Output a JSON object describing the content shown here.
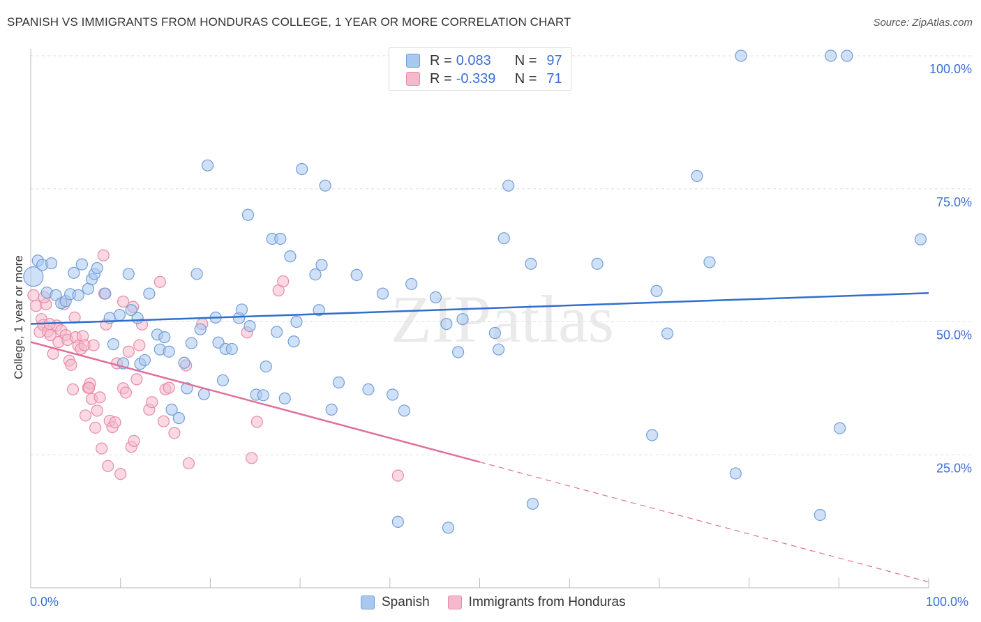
{
  "title": "SPANISH VS IMMIGRANTS FROM HONDURAS COLLEGE, 1 YEAR OR MORE CORRELATION CHART",
  "source": "Source: ZipAtlas.com",
  "watermark": "ZIPatlas",
  "colors": {
    "spanish_fill": "#a9c8f0",
    "spanish_stroke": "#6f9ed8",
    "spanish_line": "#2f6fcc",
    "honduras_fill": "#f6b9cc",
    "honduras_stroke": "#e88aa8",
    "honduras_line": "#e0709a",
    "value_text": "#3b6fd6",
    "grid": "#dddddd"
  },
  "legend": {
    "rows": [
      {
        "r_label": "R =",
        "r_value": "0.083",
        "n_label": "N =",
        "n_value": "97"
      },
      {
        "r_label": "R =",
        "r_value": "-0.339",
        "n_label": "N =",
        "n_value": "71"
      }
    ]
  },
  "bottom_legend": {
    "spanish": "Spanish",
    "honduras": "Immigrants from Honduras"
  },
  "x_axis": {
    "min_label": "0.0%",
    "max_label": "100.0%"
  },
  "chart_data": {
    "type": "scatter",
    "title": "SPANISH VS IMMIGRANTS FROM HONDURAS COLLEGE, 1 YEAR OR MORE CORRELATION CHART",
    "xlabel": "",
    "ylabel": "College, 1 year or more",
    "xlim": [
      0,
      100
    ],
    "ylim": [
      0,
      105
    ],
    "y_ticks": [
      {
        "value": 25,
        "label": "25.0%"
      },
      {
        "value": 50,
        "label": "50.0%"
      },
      {
        "value": 75,
        "label": "75.0%"
      },
      {
        "value": 100,
        "label": "100.0%"
      }
    ],
    "legend_position": "top-center",
    "series": [
      {
        "name": "Spanish",
        "r": 0.083,
        "n": 97,
        "trend": {
          "x": [
            0,
            100
          ],
          "y": [
            49.6,
            55.4
          ],
          "dashed_from": null
        },
        "points": [
          [
            0.3,
            58.5
          ],
          [
            0.8,
            61.5
          ],
          [
            1.3,
            60.7
          ],
          [
            1.8,
            55.5
          ],
          [
            2.3,
            61
          ],
          [
            2.8,
            55
          ],
          [
            3.4,
            53.5
          ],
          [
            3.9,
            53.9
          ],
          [
            4.4,
            55.2
          ],
          [
            4.8,
            59.2
          ],
          [
            5.3,
            55
          ],
          [
            5.7,
            60.8
          ],
          [
            6.4,
            56.2
          ],
          [
            6.8,
            58
          ],
          [
            7.1,
            59
          ],
          [
            7.4,
            60.1
          ],
          [
            8.3,
            55.3
          ],
          [
            8.8,
            50.7
          ],
          [
            9.2,
            45.8
          ],
          [
            9.9,
            51.3
          ],
          [
            10.3,
            42.2
          ],
          [
            10.9,
            59
          ],
          [
            11.2,
            52.2
          ],
          [
            11.9,
            50.7
          ],
          [
            12.2,
            42.1
          ],
          [
            12.7,
            42.8
          ],
          [
            13.2,
            55.3
          ],
          [
            14.1,
            47.6
          ],
          [
            14.4,
            44.8
          ],
          [
            14.9,
            47.1
          ],
          [
            15.4,
            44.4
          ],
          [
            15.7,
            33.5
          ],
          [
            16.5,
            31.9
          ],
          [
            17.1,
            42.3
          ],
          [
            17.4,
            37.5
          ],
          [
            17.9,
            46
          ],
          [
            18.5,
            59
          ],
          [
            18.9,
            48.6
          ],
          [
            19.3,
            36.4
          ],
          [
            19.7,
            79.4
          ],
          [
            20.6,
            50.8
          ],
          [
            20.9,
            46.1
          ],
          [
            21.4,
            39
          ],
          [
            21.7,
            44.9
          ],
          [
            22.4,
            44.9
          ],
          [
            23.2,
            50.7
          ],
          [
            23.5,
            52.3
          ],
          [
            24.2,
            70.1
          ],
          [
            24.4,
            49.2
          ],
          [
            25.1,
            36.3
          ],
          [
            25.9,
            36.2
          ],
          [
            26.2,
            41.6
          ],
          [
            26.9,
            65.6
          ],
          [
            27.4,
            48.1
          ],
          [
            27.8,
            65.6
          ],
          [
            28.3,
            35.6
          ],
          [
            28.9,
            62.3
          ],
          [
            29.3,
            46.3
          ],
          [
            29.6,
            50
          ],
          [
            30.2,
            78.7
          ],
          [
            31.7,
            58.9
          ],
          [
            32.1,
            52.2
          ],
          [
            32.4,
            60.7
          ],
          [
            32.8,
            75.6
          ],
          [
            33.5,
            33.5
          ],
          [
            34.3,
            38.6
          ],
          [
            36.3,
            58.8
          ],
          [
            37.6,
            37.3
          ],
          [
            39.2,
            55.3
          ],
          [
            40.3,
            36.3
          ],
          [
            40.9,
            12.4
          ],
          [
            41.6,
            33.3
          ],
          [
            42.4,
            57.1
          ],
          [
            45.1,
            54.6
          ],
          [
            46.3,
            49.6
          ],
          [
            46.5,
            11.3
          ],
          [
            47.6,
            44.3
          ],
          [
            48.1,
            50.5
          ],
          [
            51.7,
            47.9
          ],
          [
            52.1,
            44.8
          ],
          [
            52.7,
            65.7
          ],
          [
            53.2,
            75.6
          ],
          [
            55.7,
            60.9
          ],
          [
            55.9,
            15.8
          ],
          [
            63.1,
            60.9
          ],
          [
            69.2,
            28.7
          ],
          [
            69.7,
            55.8
          ],
          [
            70.9,
            47.8
          ],
          [
            74.2,
            77.4
          ],
          [
            75.6,
            61.2
          ],
          [
            78.5,
            21.5
          ],
          [
            79.1,
            100
          ],
          [
            87.9,
            13.7
          ],
          [
            89.1,
            100
          ],
          [
            90.1,
            30
          ],
          [
            90.9,
            100
          ],
          [
            99.1,
            65.5
          ]
        ]
      },
      {
        "name": "Immigrants from Honduras",
        "r": -0.339,
        "n": 71,
        "trend": {
          "x": [
            0,
            100
          ],
          "y": [
            46.2,
            1.1
          ],
          "dashed_from": 50
        },
        "points": [
          [
            0.3,
            55
          ],
          [
            0.6,
            53
          ],
          [
            1,
            48.1
          ],
          [
            1.2,
            50.5
          ],
          [
            1.4,
            49.4
          ],
          [
            1.7,
            53.3
          ],
          [
            1.9,
            48.2
          ],
          [
            2.2,
            47.5
          ],
          [
            2.5,
            44
          ],
          [
            2.9,
            49.3
          ],
          [
            3.1,
            46.2
          ],
          [
            3.4,
            48.4
          ],
          [
            3.7,
            53.3
          ],
          [
            3.9,
            47.5
          ],
          [
            4.1,
            46.6
          ],
          [
            4.3,
            42.7
          ],
          [
            4.5,
            41.9
          ],
          [
            4.7,
            37.3
          ],
          [
            5,
            47.1
          ],
          [
            5.3,
            45.5
          ],
          [
            5.6,
            44.9
          ],
          [
            5.8,
            47.3
          ],
          [
            6,
            45.6
          ],
          [
            6.1,
            32.4
          ],
          [
            6.4,
            37.6
          ],
          [
            6.6,
            38.4
          ],
          [
            6.8,
            35.5
          ],
          [
            7,
            45.6
          ],
          [
            7.2,
            30.1
          ],
          [
            7.4,
            33.3
          ],
          [
            7.7,
            35.8
          ],
          [
            7.9,
            26.2
          ],
          [
            8.2,
            55.3
          ],
          [
            8.4,
            49.5
          ],
          [
            8.6,
            22.9
          ],
          [
            8.8,
            31.4
          ],
          [
            9.1,
            30.2
          ],
          [
            9.4,
            31.1
          ],
          [
            9.6,
            42.2
          ],
          [
            10,
            21.4
          ],
          [
            10.3,
            37.5
          ],
          [
            10.6,
            36.7
          ],
          [
            10.9,
            44.4
          ],
          [
            11.2,
            26.5
          ],
          [
            11.5,
            27.6
          ],
          [
            11.8,
            39.2
          ],
          [
            12.1,
            45.6
          ],
          [
            12.4,
            49.5
          ],
          [
            13.2,
            33.5
          ],
          [
            13.5,
            34.9
          ],
          [
            14.4,
            57.5
          ],
          [
            14.8,
            31.3
          ],
          [
            15,
            37.3
          ],
          [
            15.4,
            37.6
          ],
          [
            16,
            29.1
          ],
          [
            17.3,
            41.8
          ],
          [
            17.6,
            23.4
          ],
          [
            19.1,
            49.6
          ],
          [
            24.1,
            48
          ],
          [
            24.6,
            24.4
          ],
          [
            25.2,
            31.2
          ],
          [
            27.6,
            55.9
          ],
          [
            28.1,
            57.6
          ],
          [
            40.9,
            21.1
          ],
          [
            8.1,
            62.5
          ],
          [
            10.3,
            53.8
          ],
          [
            4.9,
            50.8
          ],
          [
            6.5,
            37.6
          ],
          [
            2.1,
            49.6
          ],
          [
            1.5,
            54.6
          ],
          [
            11.4,
            52.8
          ]
        ]
      }
    ]
  }
}
